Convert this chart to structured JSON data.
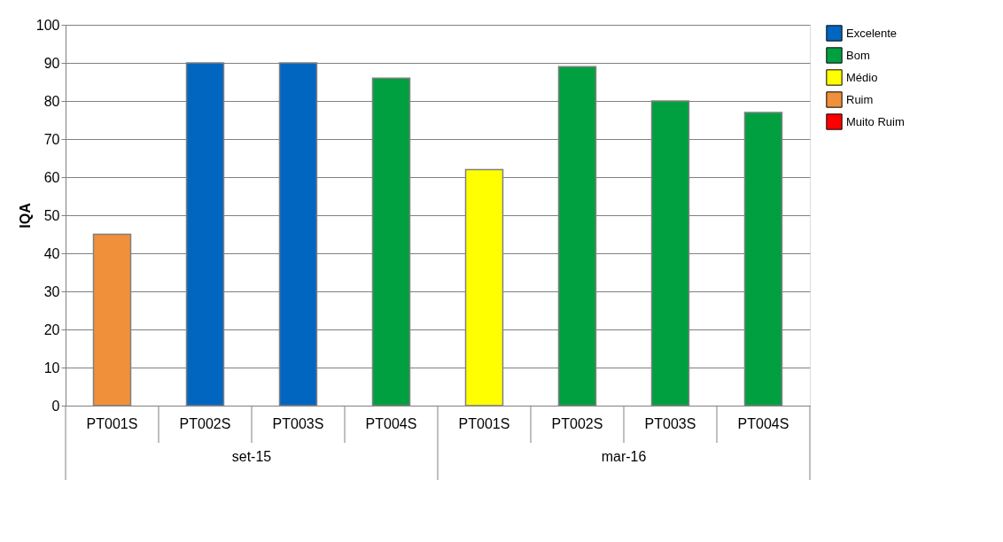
{
  "chart_data": {
    "type": "bar",
    "ylabel": "IQA",
    "categories": [
      "PT001S",
      "PT002S",
      "PT003S",
      "PT004S",
      "PT001S",
      "PT002S",
      "PT003S",
      "PT004S"
    ],
    "series": [
      {
        "name": "Excelente",
        "color": "#0066c0",
        "values": [
          null,
          90,
          90,
          null,
          null,
          null,
          null,
          null
        ]
      },
      {
        "name": "Bom",
        "color": "#00a040",
        "values": [
          null,
          null,
          null,
          86,
          null,
          89,
          80,
          77
        ]
      },
      {
        "name": "Médio",
        "color": "#ffff00",
        "values": [
          null,
          null,
          null,
          null,
          62,
          null,
          null,
          null
        ]
      },
      {
        "name": "Ruim",
        "color": "#f0903a",
        "values": [
          45,
          null,
          null,
          null,
          null,
          null,
          null,
          null
        ]
      },
      {
        "name": "Muito Ruim",
        "color": "#ff0000",
        "values": [
          null,
          null,
          null,
          null,
          null,
          null,
          null,
          null
        ]
      }
    ],
    "annotations": [
      "set-15",
      "mar-16"
    ],
    "ylim": [
      0,
      100
    ],
    "yticks": [
      0,
      10,
      20,
      30,
      40,
      50,
      60,
      70,
      80,
      90,
      100
    ],
    "grid": "y",
    "legend": "right"
  }
}
